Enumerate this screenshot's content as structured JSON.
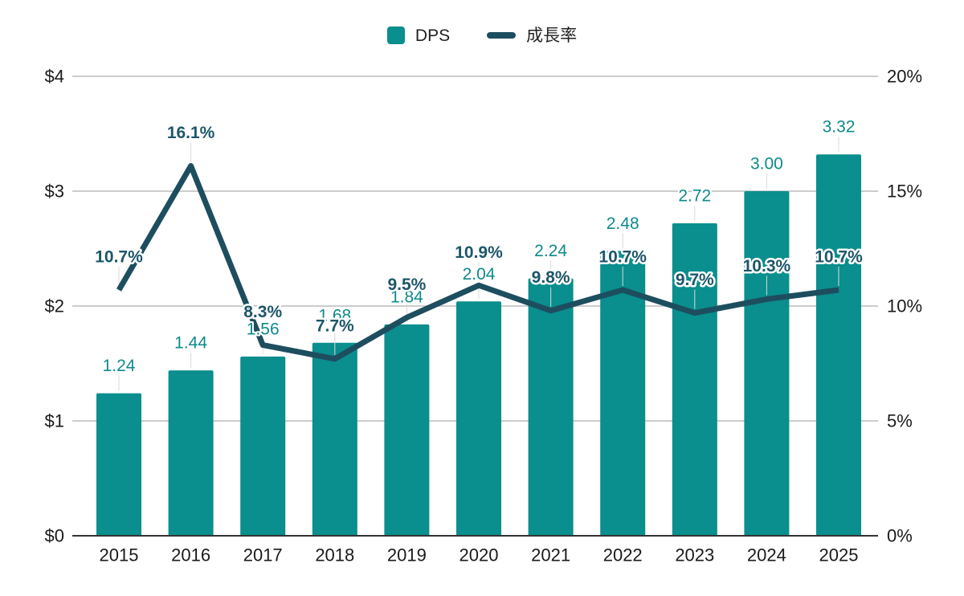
{
  "colors": {
    "bar": "#0a8e8e",
    "line": "#1d4e5f",
    "bar_label": "#0e8a8c",
    "growth_label": "#1d566b",
    "grid": "#cccccc",
    "axis_line": "#333333",
    "tick_text": "#1a1a1a",
    "legend_text": "#222222",
    "stem": "#d9d9d9",
    "background": "#ffffff"
  },
  "chart_data": {
    "type": "combo-bar-line",
    "title": "",
    "categories": [
      "2015",
      "2016",
      "2017",
      "2018",
      "2019",
      "2020",
      "2021",
      "2022",
      "2023",
      "2024",
      "2025"
    ],
    "series": [
      {
        "name": "DPS",
        "type": "bar",
        "axis": "left",
        "values": [
          1.24,
          1.44,
          1.56,
          1.68,
          1.84,
          2.04,
          2.24,
          2.48,
          2.72,
          3.0,
          3.32
        ],
        "data_labels": [
          "1.24",
          "1.44",
          "1.56",
          "1.68",
          "1.84",
          "2.04",
          "2.24",
          "2.48",
          "2.72",
          "3.00",
          "3.32"
        ]
      },
      {
        "name": "成長率",
        "type": "line",
        "axis": "right",
        "values": [
          10.7,
          16.1,
          8.3,
          7.7,
          9.5,
          10.9,
          9.8,
          10.7,
          9.7,
          10.3,
          10.7
        ],
        "data_labels": [
          "10.7%",
          "16.1%",
          "8.3%",
          "7.7%",
          "9.5%",
          "10.9%",
          "9.8%",
          "10.7%",
          "9.7%",
          "10.3%",
          "10.7%"
        ]
      }
    ],
    "left_axis": {
      "ticks": [
        "$0",
        "$1",
        "$2",
        "$3",
        "$4"
      ],
      "min": 0,
      "max": 4
    },
    "right_axis": {
      "ticks": [
        "0%",
        "5%",
        "10%",
        "15%",
        "20%"
      ],
      "min": 0,
      "max": 20
    },
    "legend_position": "top",
    "grid": true
  }
}
